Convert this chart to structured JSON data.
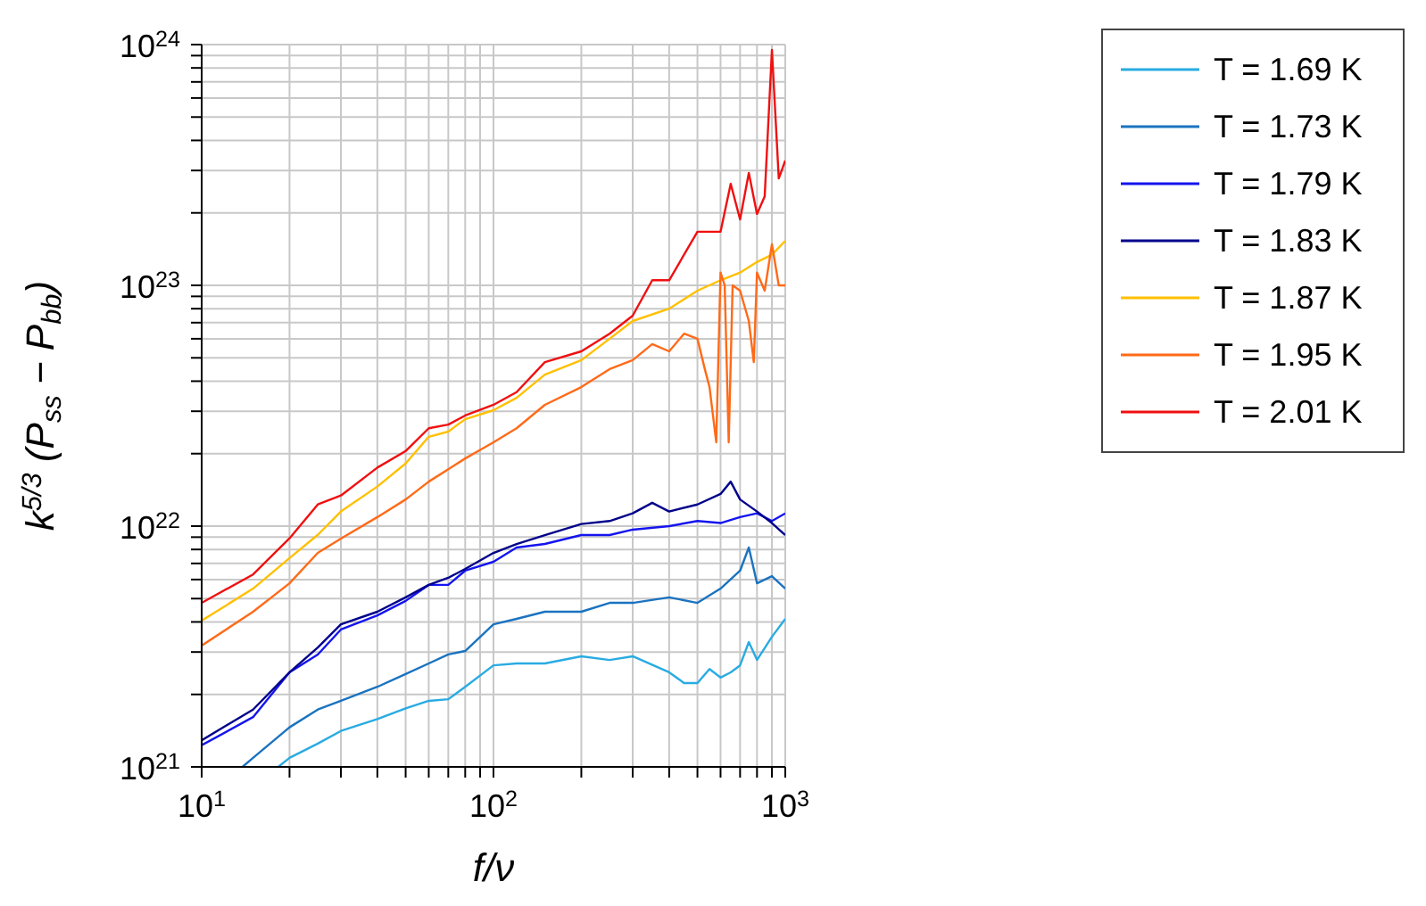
{
  "chart_data": {
    "type": "line",
    "xlabel": "f/ν",
    "ylabel": "k$^{5/3}$ (P$_{ss}$ − P$_{bb}$)",
    "log": "xy",
    "grid": true,
    "legend": "right",
    "xlim": [
      10,
      1000
    ],
    "ylim": [
      1e+21,
      1e+24
    ],
    "xticks": [
      {
        "value": 10,
        "label": "10$^{1}$"
      },
      {
        "value": 20,
        "label": null
      },
      {
        "value": 30,
        "label": null
      },
      {
        "value": 40,
        "label": null
      },
      {
        "value": 50,
        "label": null
      },
      {
        "value": 60,
        "label": null
      },
      {
        "value": 70,
        "label": null
      },
      {
        "value": 80,
        "label": null
      },
      {
        "value": 90,
        "label": null
      },
      {
        "value": 100,
        "label": "10$^{2}$"
      },
      {
        "value": 200,
        "label": null
      },
      {
        "value": 300,
        "label": null
      },
      {
        "value": 400,
        "label": null
      },
      {
        "value": 500,
        "label": null
      },
      {
        "value": 600,
        "label": null
      },
      {
        "value": 700,
        "label": null
      },
      {
        "value": 800,
        "label": null
      },
      {
        "value": 900,
        "label": null
      },
      {
        "value": 1000,
        "label": "10$^{3}$"
      }
    ],
    "yticks": [
      {
        "value": 1e+21,
        "label": "10$^{21}$"
      },
      {
        "value": 2e+21,
        "label": null
      },
      {
        "value": 3e+21,
        "label": null
      },
      {
        "value": 4e+21,
        "label": null
      },
      {
        "value": 5e+21,
        "label": null
      },
      {
        "value": 6e+21,
        "label": null
      },
      {
        "value": 7e+21,
        "label": null
      },
      {
        "value": 8e+21,
        "label": null
      },
      {
        "value": 9e+21,
        "label": null
      },
      {
        "value": 1e+22,
        "label": "10$^{22}$"
      },
      {
        "value": 2e+22,
        "label": null
      },
      {
        "value": 3e+22,
        "label": null
      },
      {
        "value": 4e+22,
        "label": null
      },
      {
        "value": 5e+22,
        "label": null
      },
      {
        "value": 6e+22,
        "label": null
      },
      {
        "value": 7e+22,
        "label": null
      },
      {
        "value": 8e+22,
        "label": null
      },
      {
        "value": 9e+22,
        "label": null
      },
      {
        "value": 1e+23,
        "label": "10$^{23}$"
      },
      {
        "value": 2e+23,
        "label": null
      },
      {
        "value": 3e+23,
        "label": null
      },
      {
        "value": 4e+23,
        "label": null
      },
      {
        "value": 5e+23,
        "label": null
      },
      {
        "value": 6e+23,
        "label": null
      },
      {
        "value": 7e+23,
        "label": null
      },
      {
        "value": 8e+23,
        "label": null
      },
      {
        "value": 9e+23,
        "label": null
      },
      {
        "value": 1e+24,
        "label": "10$^{24}$"
      }
    ],
    "series": [
      {
        "name": "T = 1.69 K",
        "color": "#29abe2",
        "x": [
          18.3,
          20,
          25,
          30,
          40,
          50,
          60,
          70,
          80,
          100,
          120,
          150,
          200,
          250,
          300,
          400,
          450,
          500,
          550,
          600,
          650,
          700,
          750,
          800,
          900,
          1000
        ],
        "values": [
          1e+21,
          1.09e+21,
          1.25e+21,
          1.41e+21,
          1.58e+21,
          1.75e+21,
          1.88e+21,
          1.91e+21,
          2.15e+21,
          2.64e+21,
          2.69e+21,
          2.69e+21,
          2.88e+21,
          2.78e+21,
          2.88e+21,
          2.47e+21,
          2.23e+21,
          2.23e+21,
          2.55e+21,
          2.35e+21,
          2.47e+21,
          2.64e+21,
          3.3e+21,
          2.78e+21,
          3.47e+21,
          4.12e+21
        ]
      },
      {
        "name": "T = 1.73 K",
        "color": "#1a73c0",
        "x": [
          13.8,
          15,
          20,
          25,
          30,
          40,
          50,
          60,
          70,
          80,
          100,
          120,
          150,
          200,
          250,
          300,
          400,
          500,
          600,
          700,
          750,
          800,
          900,
          1000
        ],
        "values": [
          1e+21,
          1.09e+21,
          1.46e+21,
          1.73e+21,
          1.88e+21,
          2.15e+21,
          2.43e+21,
          2.69e+21,
          2.93e+21,
          3.03e+21,
          3.91e+21,
          4.12e+21,
          4.41e+21,
          4.41e+21,
          4.8e+21,
          4.8e+21,
          5.06e+21,
          4.8e+21,
          5.5e+21,
          6.53e+21,
          8.15e+21,
          5.79e+21,
          6.2e+21,
          5.5e+21
        ]
      },
      {
        "name": "T = 1.79 K",
        "color": "#1414f0",
        "x": [
          10,
          15,
          20,
          25,
          30,
          40,
          50,
          60,
          70,
          80,
          100,
          120,
          150,
          200,
          250,
          300,
          400,
          500,
          600,
          700,
          800,
          900,
          1000
        ],
        "values": [
          1.23e+21,
          1.61e+21,
          2.47e+21,
          2.93e+21,
          3.72e+21,
          4.26e+21,
          4.89e+21,
          5.7e+21,
          5.7e+21,
          6.53e+21,
          7.11e+21,
          8.15e+21,
          8.43e+21,
          9.18e+21,
          9.18e+21,
          9.67e+21,
          1e+22,
          1.05e+22,
          1.03e+22,
          1.09e+22,
          1.13e+22,
          1.05e+22,
          1.13e+22
        ]
      },
      {
        "name": "T = 1.83 K",
        "color": "#00008b",
        "x": [
          10,
          15,
          20,
          25,
          30,
          40,
          50,
          60,
          70,
          80,
          100,
          120,
          150,
          200,
          250,
          300,
          350,
          400,
          500,
          600,
          650,
          700,
          800,
          900,
          1000
        ],
        "values": [
          1.29e+21,
          1.73e+21,
          2.47e+21,
          3.13e+21,
          3.91e+21,
          4.41e+21,
          5.06e+21,
          5.7e+21,
          6.1e+21,
          6.64e+21,
          7.74e+21,
          8.43e+21,
          9.18e+21,
          1.02e+22,
          1.05e+22,
          1.13e+22,
          1.25e+22,
          1.15e+22,
          1.23e+22,
          1.36e+22,
          1.53e+22,
          1.29e+22,
          1.15e+22,
          1.03e+22,
          9.18e+21
        ]
      },
      {
        "name": "T = 1.87 K",
        "color": "#ffc000",
        "x": [
          10,
          15,
          20,
          25,
          30,
          40,
          50,
          60,
          70,
          80,
          100,
          120,
          150,
          200,
          250,
          300,
          400,
          500,
          600,
          700,
          800,
          900,
          1000
        ],
        "values": [
          4.05e+21,
          5.5e+21,
          7.36e+21,
          9.2e+21,
          1.15e+22,
          1.46e+22,
          1.82e+22,
          2.35e+22,
          2.47e+22,
          2.78e+22,
          3.03e+22,
          3.41e+22,
          4.26e+22,
          4.89e+22,
          6e+22,
          7.11e+22,
          8e+22,
          9.5e+22,
          1.05e+23,
          1.13e+23,
          1.25e+23,
          1.34e+23,
          1.53e+23
        ]
      },
      {
        "name": "T = 1.95 K",
        "color": "#ff6a18",
        "x": [
          10,
          15,
          20,
          25,
          30,
          40,
          50,
          60,
          80,
          100,
          120,
          150,
          200,
          250,
          300,
          350,
          400,
          450,
          500,
          530,
          550,
          580,
          600,
          620,
          640,
          660,
          700,
          750,
          780,
          800,
          850,
          900,
          950,
          1000
        ],
        "values": [
          3.19e+21,
          4.41e+21,
          5.79e+21,
          7.74e+21,
          8.87e+21,
          1.09e+22,
          1.29e+22,
          1.53e+22,
          1.91e+22,
          2.23e+22,
          2.55e+22,
          3.19e+22,
          3.78e+22,
          4.49e+22,
          4.89e+22,
          5.7e+22,
          5.32e+22,
          6.3e+22,
          6e+22,
          4.49e+22,
          3.78e+22,
          2.23e+22,
          1.13e+23,
          1e+23,
          2.23e+22,
          1e+23,
          9.5e+22,
          7.11e+22,
          4.8e+22,
          1.13e+23,
          9.5e+22,
          1.48e+23,
          1e+23,
          1e+23
        ]
      },
      {
        "name": "T = 2.01 K",
        "color": "#f01010",
        "x": [
          10,
          15,
          20,
          25,
          30,
          40,
          50,
          60,
          70,
          80,
          100,
          120,
          150,
          200,
          250,
          300,
          350,
          400,
          500,
          600,
          650,
          700,
          750,
          800,
          850,
          900,
          950,
          1000
        ],
        "values": [
          4.8e+21,
          6.3e+21,
          8.9e+21,
          1.23e+22,
          1.34e+22,
          1.75e+22,
          2.05e+22,
          2.55e+22,
          2.64e+22,
          2.88e+22,
          3.19e+22,
          3.6e+22,
          4.8e+22,
          5.32e+22,
          6.3e+22,
          7.48e+22,
          1.05e+23,
          1.05e+23,
          1.67e+23,
          1.67e+23,
          2.64e+23,
          1.88e+23,
          2.93e+23,
          1.98e+23,
          2.34e+23,
          9.5e+23,
          2.78e+23,
          3.3e+23
        ]
      }
    ]
  }
}
